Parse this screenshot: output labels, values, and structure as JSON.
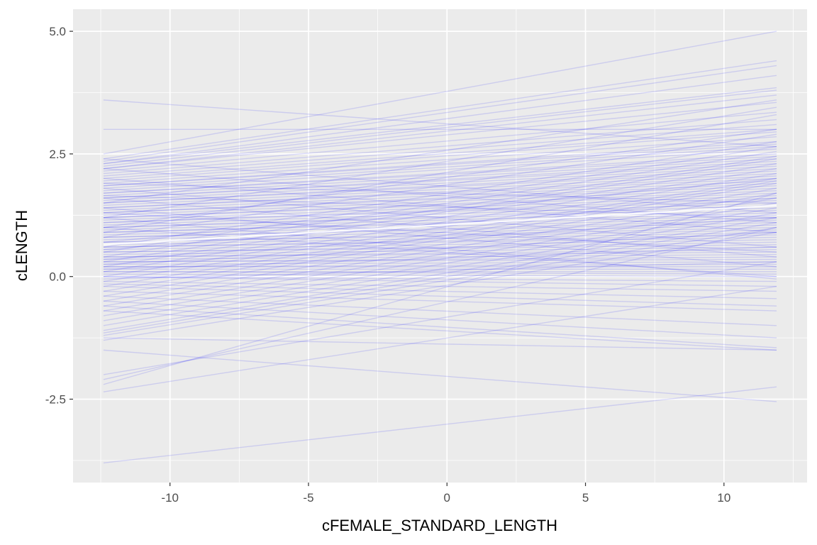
{
  "chart_data": {
    "type": "line",
    "title": "",
    "xlabel": "cFEMALE_STANDARD_LENGTH",
    "ylabel": "cLENGTH",
    "xlim": [
      -13.5,
      13.0
    ],
    "ylim": [
      -4.2,
      5.45
    ],
    "x_ticks": [
      -10,
      -5,
      0,
      5,
      10
    ],
    "x_tick_labels": [
      "-10",
      "-5",
      "0",
      "5",
      "10"
    ],
    "y_ticks": [
      -2.5,
      0.0,
      2.5,
      5.0
    ],
    "y_tick_labels": [
      "-2.5",
      "0.0",
      "2.5",
      "5.0"
    ],
    "x_range": [
      -12.4,
      11.9
    ],
    "grid": true,
    "legend": "none",
    "colors": {
      "panel": "#ebebeb",
      "grid": "#ffffff",
      "line": "#0000ff",
      "axis_text": "#4d4d4d",
      "axis_title": "#000000"
    },
    "line_opacity": 0.13,
    "mean_line": {
      "y_start": 0.65,
      "y_end": 1.45
    },
    "lines": [
      [
        3.6,
        2.65
      ],
      [
        3.0,
        3.0
      ],
      [
        2.5,
        5.0
      ],
      [
        2.4,
        4.4
      ],
      [
        2.35,
        4.3
      ],
      [
        2.3,
        4.1
      ],
      [
        2.3,
        3.85
      ],
      [
        2.25,
        3.8
      ],
      [
        2.2,
        3.7
      ],
      [
        2.2,
        3.55
      ],
      [
        2.15,
        3.35
      ],
      [
        2.1,
        3.2
      ],
      [
        2.05,
        3.1
      ],
      [
        2.0,
        3.0
      ],
      [
        1.95,
        2.95
      ],
      [
        1.9,
        2.85
      ],
      [
        1.85,
        2.75
      ],
      [
        1.85,
        2.7
      ],
      [
        1.8,
        2.65
      ],
      [
        1.75,
        2.6
      ],
      [
        1.7,
        2.5
      ],
      [
        1.7,
        2.45
      ],
      [
        1.65,
        2.4
      ],
      [
        1.6,
        2.35
      ],
      [
        1.6,
        2.3
      ],
      [
        1.55,
        2.25
      ],
      [
        1.5,
        2.2
      ],
      [
        1.5,
        2.15
      ],
      [
        1.45,
        2.1
      ],
      [
        1.4,
        2.05
      ],
      [
        1.4,
        2.0
      ],
      [
        1.35,
        1.95
      ],
      [
        1.3,
        1.9
      ],
      [
        1.3,
        1.85
      ],
      [
        1.25,
        1.8
      ],
      [
        1.2,
        1.75
      ],
      [
        1.2,
        1.7
      ],
      [
        1.15,
        1.65
      ],
      [
        1.1,
        1.6
      ],
      [
        1.1,
        1.55
      ],
      [
        1.05,
        1.5
      ],
      [
        1.0,
        1.45
      ],
      [
        1.0,
        1.4
      ],
      [
        0.95,
        1.35
      ],
      [
        0.9,
        1.3
      ],
      [
        0.9,
        1.25
      ],
      [
        0.85,
        1.2
      ],
      [
        0.8,
        1.15
      ],
      [
        0.8,
        1.1
      ],
      [
        0.75,
        1.05
      ],
      [
        0.7,
        1.0
      ],
      [
        0.7,
        0.95
      ],
      [
        0.65,
        0.9
      ],
      [
        0.6,
        0.85
      ],
      [
        0.6,
        0.8
      ],
      [
        0.55,
        0.75
      ],
      [
        0.5,
        0.7
      ],
      [
        0.5,
        0.65
      ],
      [
        0.45,
        0.6
      ],
      [
        0.4,
        0.55
      ],
      [
        0.4,
        0.5
      ],
      [
        0.35,
        0.45
      ],
      [
        0.3,
        0.4
      ],
      [
        0.3,
        0.35
      ],
      [
        0.25,
        0.3
      ],
      [
        0.2,
        0.25
      ],
      [
        0.2,
        0.2
      ],
      [
        0.15,
        0.15
      ],
      [
        0.1,
        0.1
      ],
      [
        0.1,
        0.05
      ],
      [
        0.05,
        0.0
      ],
      [
        0.0,
        -0.1
      ],
      [
        0.0,
        -0.2
      ],
      [
        -0.1,
        -0.3
      ],
      [
        -0.15,
        -0.45
      ],
      [
        -0.2,
        -0.6
      ],
      [
        -0.3,
        -0.7
      ],
      [
        -0.4,
        -1.0
      ],
      [
        -0.5,
        -1.25
      ],
      [
        -0.6,
        -1.45
      ],
      [
        -0.7,
        -1.5
      ],
      [
        1.5,
        3.6
      ],
      [
        1.2,
        3.45
      ],
      [
        1.0,
        3.0
      ],
      [
        0.8,
        2.9
      ],
      [
        0.6,
        2.75
      ],
      [
        0.5,
        2.65
      ],
      [
        0.4,
        2.55
      ],
      [
        0.3,
        2.45
      ],
      [
        0.2,
        2.4
      ],
      [
        0.1,
        2.3
      ],
      [
        0.0,
        2.2
      ],
      [
        -0.1,
        2.1
      ],
      [
        -0.2,
        2.0
      ],
      [
        -0.3,
        1.95
      ],
      [
        -0.4,
        1.9
      ],
      [
        -0.5,
        1.8
      ],
      [
        -0.6,
        1.7
      ],
      [
        -0.7,
        1.6
      ],
      [
        -0.8,
        1.5
      ],
      [
        -0.9,
        1.4
      ],
      [
        -1.0,
        1.3
      ],
      [
        -1.1,
        1.2
      ],
      [
        -1.15,
        1.1
      ],
      [
        -1.2,
        1.0
      ],
      [
        -1.3,
        0.9
      ],
      [
        1.8,
        0.6
      ],
      [
        1.6,
        0.4
      ],
      [
        1.4,
        0.2
      ],
      [
        1.2,
        -0.05
      ],
      [
        2.0,
        0.9
      ],
      [
        2.2,
        1.1
      ],
      [
        2.4,
        1.3
      ],
      [
        -1.25,
        -1.5
      ],
      [
        -1.5,
        -2.55
      ],
      [
        -2.0,
        0.3
      ],
      [
        -2.1,
        1.0
      ],
      [
        -2.2,
        1.7
      ],
      [
        -2.35,
        -0.2
      ],
      [
        -3.8,
        -2.25
      ],
      [
        0.9,
        3.3
      ],
      [
        0.7,
        2.0
      ],
      [
        0.55,
        1.6
      ],
      [
        0.35,
        1.2
      ],
      [
        0.25,
        0.9
      ],
      [
        0.15,
        0.6
      ],
      [
        -0.05,
        0.3
      ],
      [
        1.0,
        0.0
      ],
      [
        1.3,
        0.5
      ],
      [
        1.65,
        1.2
      ],
      [
        1.9,
        1.5
      ]
    ]
  }
}
